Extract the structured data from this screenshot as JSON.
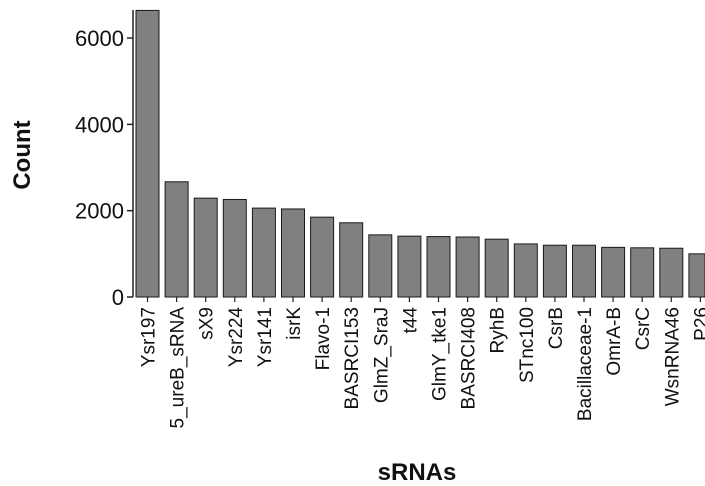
{
  "chart_data": {
    "type": "bar",
    "xlabel": "sRNAs",
    "ylabel": "Count",
    "ylim": [
      0,
      6650
    ],
    "yticks": [
      0,
      2000,
      4000,
      6000
    ],
    "categories": [
      "Ysr197",
      "5_ureB_sRNA",
      "sX9",
      "Ysr224",
      "Ysr141",
      "isrK",
      "Flavo-1",
      "BASRCI153",
      "GlmZ_SraJ",
      "t44",
      "GlmY_tke1",
      "BASRCI408",
      "RyhB",
      "STnc100",
      "CsrB",
      "Bacillaceae-1",
      "OmrA-B",
      "CsrC",
      "WsnRNA46",
      "P26"
    ],
    "values": [
      6640,
      2670,
      2290,
      2260,
      2060,
      2040,
      1850,
      1720,
      1440,
      1410,
      1400,
      1390,
      1340,
      1230,
      1200,
      1200,
      1150,
      1140,
      1130,
      1000
    ],
    "bar_color": "#808080",
    "bar_edge_color": "#1a1a1a",
    "axis_color": "#222222",
    "grid": false
  }
}
